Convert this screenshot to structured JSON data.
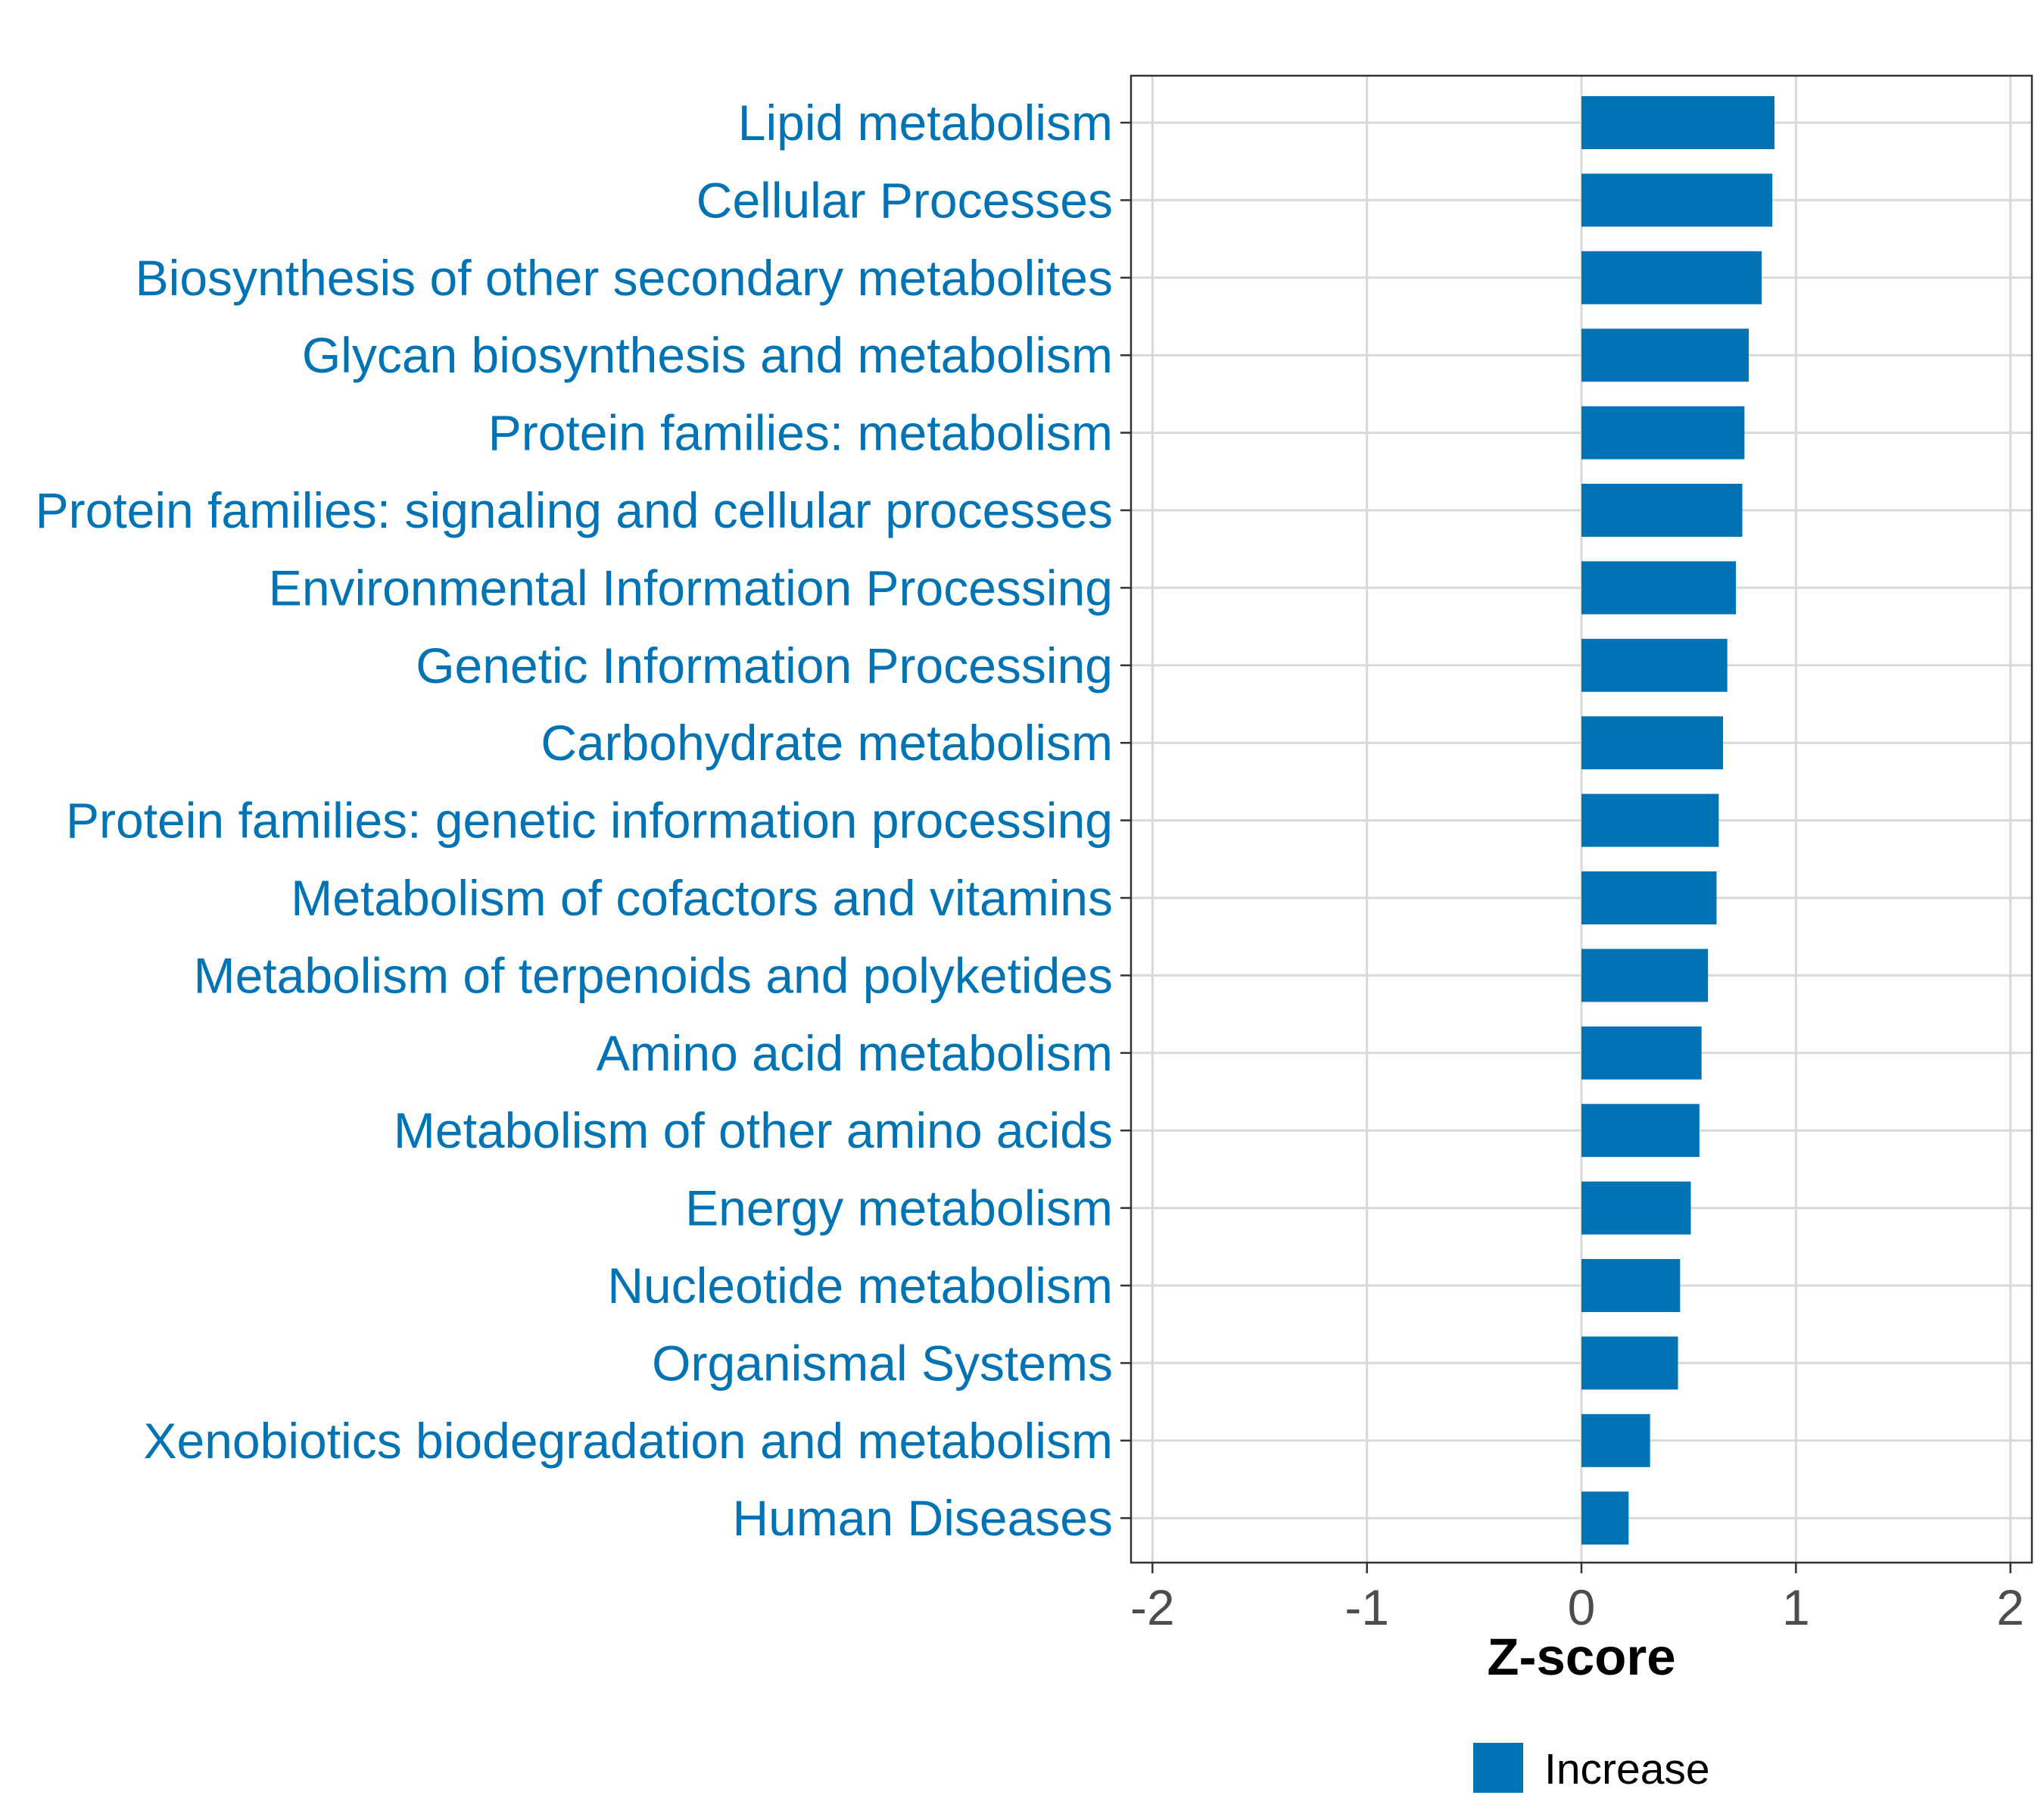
{
  "chart_data": {
    "type": "bar",
    "orientation": "horizontal",
    "categories": [
      "Lipid metabolism",
      "Cellular Processes",
      "Biosynthesis of other secondary metabolites",
      "Glycan biosynthesis and metabolism",
      "Protein families: metabolism",
      "Protein families: signaling and cellular processes",
      "Environmental Information Processing",
      "Genetic Information Processing",
      "Carbohydrate metabolism",
      "Protein families: genetic information processing",
      "Metabolism of cofactors and vitamins",
      "Metabolism of terpenoids and polyketides",
      "Amino acid metabolism",
      "Metabolism of other amino acids",
      "Energy metabolism",
      "Nucleotide metabolism",
      "Organismal Systems",
      "Xenobiotics biodegradation and metabolism",
      "Human Diseases"
    ],
    "values": [
      0.9,
      0.89,
      0.84,
      0.78,
      0.76,
      0.75,
      0.72,
      0.68,
      0.66,
      0.64,
      0.63,
      0.59,
      0.56,
      0.55,
      0.51,
      0.46,
      0.45,
      0.32,
      0.22
    ],
    "series": [
      {
        "name": "Increase",
        "color": "#0073b4"
      }
    ],
    "title": "",
    "xlabel": "Z-score",
    "ylabel": "",
    "xlim": [
      -2.1,
      2.1
    ],
    "xticks": [
      -2,
      -1,
      0,
      1,
      2
    ],
    "xtick_labels": [
      "-2",
      "-1",
      "0",
      "1",
      "2"
    ],
    "grid": true,
    "legend_position": "bottom",
    "label_color": "#0073b4",
    "grid_color": "#d9d9d9"
  }
}
